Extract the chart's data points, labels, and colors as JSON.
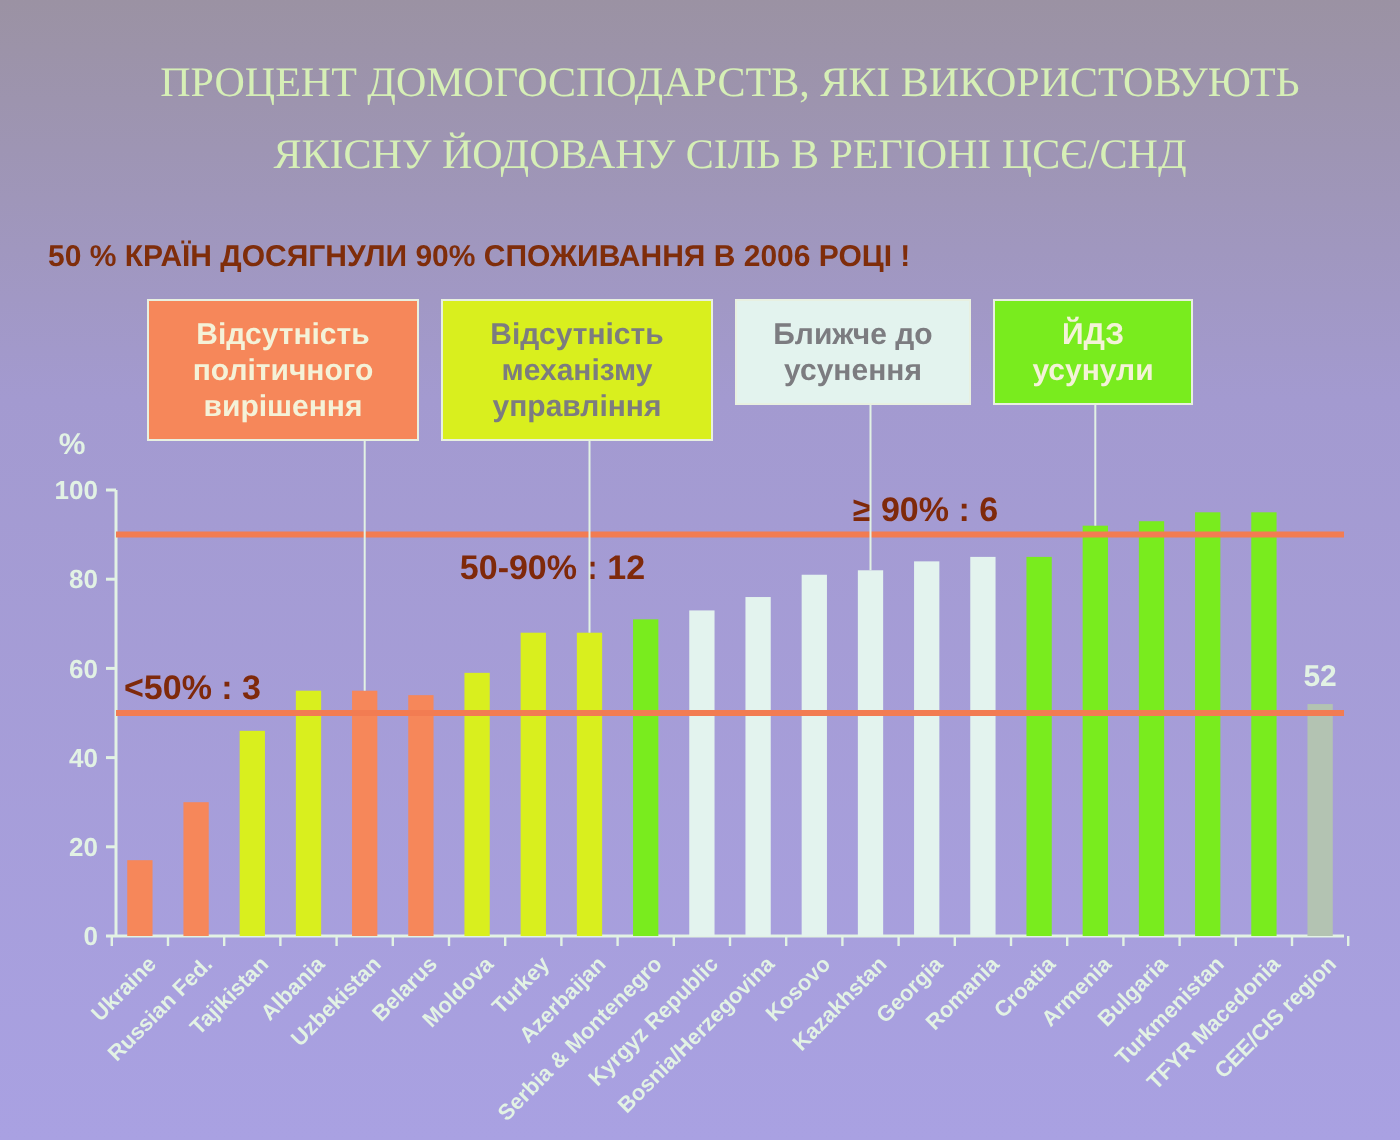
{
  "chart_data": {
    "type": "bar",
    "title": "ПРОЦЕНТ ДОМОГОСПОДАРСТВ, ЯКІ ВИКОРИСТОВУЮТЬ ЯКІСНУ ЙОДОВАНУ СІЛЬ В РЕГІОНІ ЦСЄ/СНД",
    "subtitle": "50 % КРАЇН ДОСЯГНУЛИ 90% СПОЖИВАННЯ В 2006 РОЦІ !",
    "ylabel": "%",
    "categories": [
      "Ukraine",
      "Russian Fed.",
      "Tajikistan",
      "Albania",
      "Uzbekistan",
      "Belarus",
      "Moldova",
      "Turkey",
      "Azerbaijan",
      "Serbia & Montenegro",
      "Kyrgyz Republic",
      "Bosnia/Herzegovina",
      "Kosovo",
      "Kazakhstan",
      "Georgia",
      "Romania",
      "Croatia",
      "Armenia",
      "Bulgaria",
      "Turkmenistan",
      "TFYR Macedonia",
      "CEE/CIS region"
    ],
    "stacked": true,
    "series": [
      {
        "name": "Відсутність політичного вирішення",
        "color": "#f6875a",
        "values": [
          17,
          30,
          null,
          null,
          55,
          54,
          null,
          null,
          null,
          null,
          null,
          null,
          null,
          null,
          null,
          null,
          null,
          null,
          null,
          null,
          null,
          null
        ]
      },
      {
        "name": "Відсутність механізму управління",
        "color": "#d9ef1e",
        "values": [
          null,
          null,
          46,
          55,
          null,
          null,
          59,
          68,
          68,
          null,
          null,
          null,
          null,
          null,
          null,
          null,
          null,
          null,
          null,
          null,
          null,
          null
        ]
      },
      {
        "name": "Ближче до усунення",
        "color": "#e3f3ee",
        "values": [
          null,
          null,
          null,
          null,
          null,
          null,
          null,
          null,
          null,
          null,
          73,
          76,
          81,
          82,
          84,
          85,
          null,
          null,
          null,
          null,
          null,
          null
        ]
      },
      {
        "name": "ЙДЗ усунули",
        "color": "#79ec1e",
        "values": [
          null,
          null,
          null,
          null,
          null,
          null,
          null,
          null,
          null,
          71,
          null,
          null,
          null,
          null,
          null,
          null,
          85,
          92,
          93,
          95,
          95,
          null
        ]
      },
      {
        "color": "#b3c3b2",
        "values": [
          null,
          null,
          null,
          null,
          null,
          null,
          null,
          null,
          null,
          null,
          null,
          null,
          null,
          null,
          null,
          null,
          null,
          null,
          null,
          null,
          null,
          52
        ],
        "value_labels": [
          null,
          null,
          null,
          null,
          null,
          null,
          null,
          null,
          null,
          null,
          null,
          null,
          null,
          null,
          null,
          null,
          null,
          null,
          null,
          null,
          null,
          "52"
        ]
      }
    ],
    "ylim": [
      0,
      100
    ],
    "yticks": [
      0,
      20,
      40,
      60,
      80,
      100
    ],
    "legend": "top",
    "ref_lines": [
      {
        "axis": "y",
        "value": 50,
        "label": "<50% : 3",
        "color": "#f27c52"
      },
      {
        "axis": "y",
        "value": 90,
        "label": "≥ 90% : 6",
        "color": "#f27c52"
      }
    ],
    "annotations": [
      "50-90% : 12"
    ]
  }
}
